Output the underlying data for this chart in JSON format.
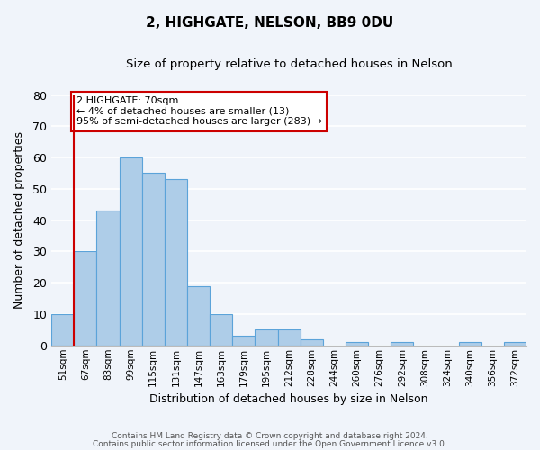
{
  "title1": "2, HIGHGATE, NELSON, BB9 0DU",
  "title2": "Size of property relative to detached houses in Nelson",
  "xlabel": "Distribution of detached houses by size in Nelson",
  "ylabel": "Number of detached properties",
  "bar_color": "#aecde8",
  "bar_edge_color": "#5ba3d9",
  "bg_color": "#f0f4fa",
  "bins": [
    "51sqm",
    "67sqm",
    "83sqm",
    "99sqm",
    "115sqm",
    "131sqm",
    "147sqm",
    "163sqm",
    "179sqm",
    "195sqm",
    "212sqm",
    "228sqm",
    "244sqm",
    "260sqm",
    "276sqm",
    "292sqm",
    "308sqm",
    "324sqm",
    "340sqm",
    "356sqm",
    "372sqm"
  ],
  "values": [
    10,
    30,
    43,
    60,
    55,
    53,
    19,
    10,
    3,
    5,
    5,
    2,
    0,
    1,
    0,
    1,
    0,
    0,
    1,
    0,
    1
  ],
  "ylim": [
    0,
    80
  ],
  "yticks": [
    0,
    10,
    20,
    30,
    40,
    50,
    60,
    70,
    80
  ],
  "annotation_text": "2 HIGHGATE: 70sqm\n← 4% of detached houses are smaller (13)\n95% of semi-detached houses are larger (283) →",
  "annotation_box_color": "#ffffff",
  "annotation_box_edge": "#cc0000",
  "property_line_color": "#cc0000",
  "footer1": "Contains HM Land Registry data © Crown copyright and database right 2024.",
  "footer2": "Contains public sector information licensed under the Open Government Licence v3.0."
}
